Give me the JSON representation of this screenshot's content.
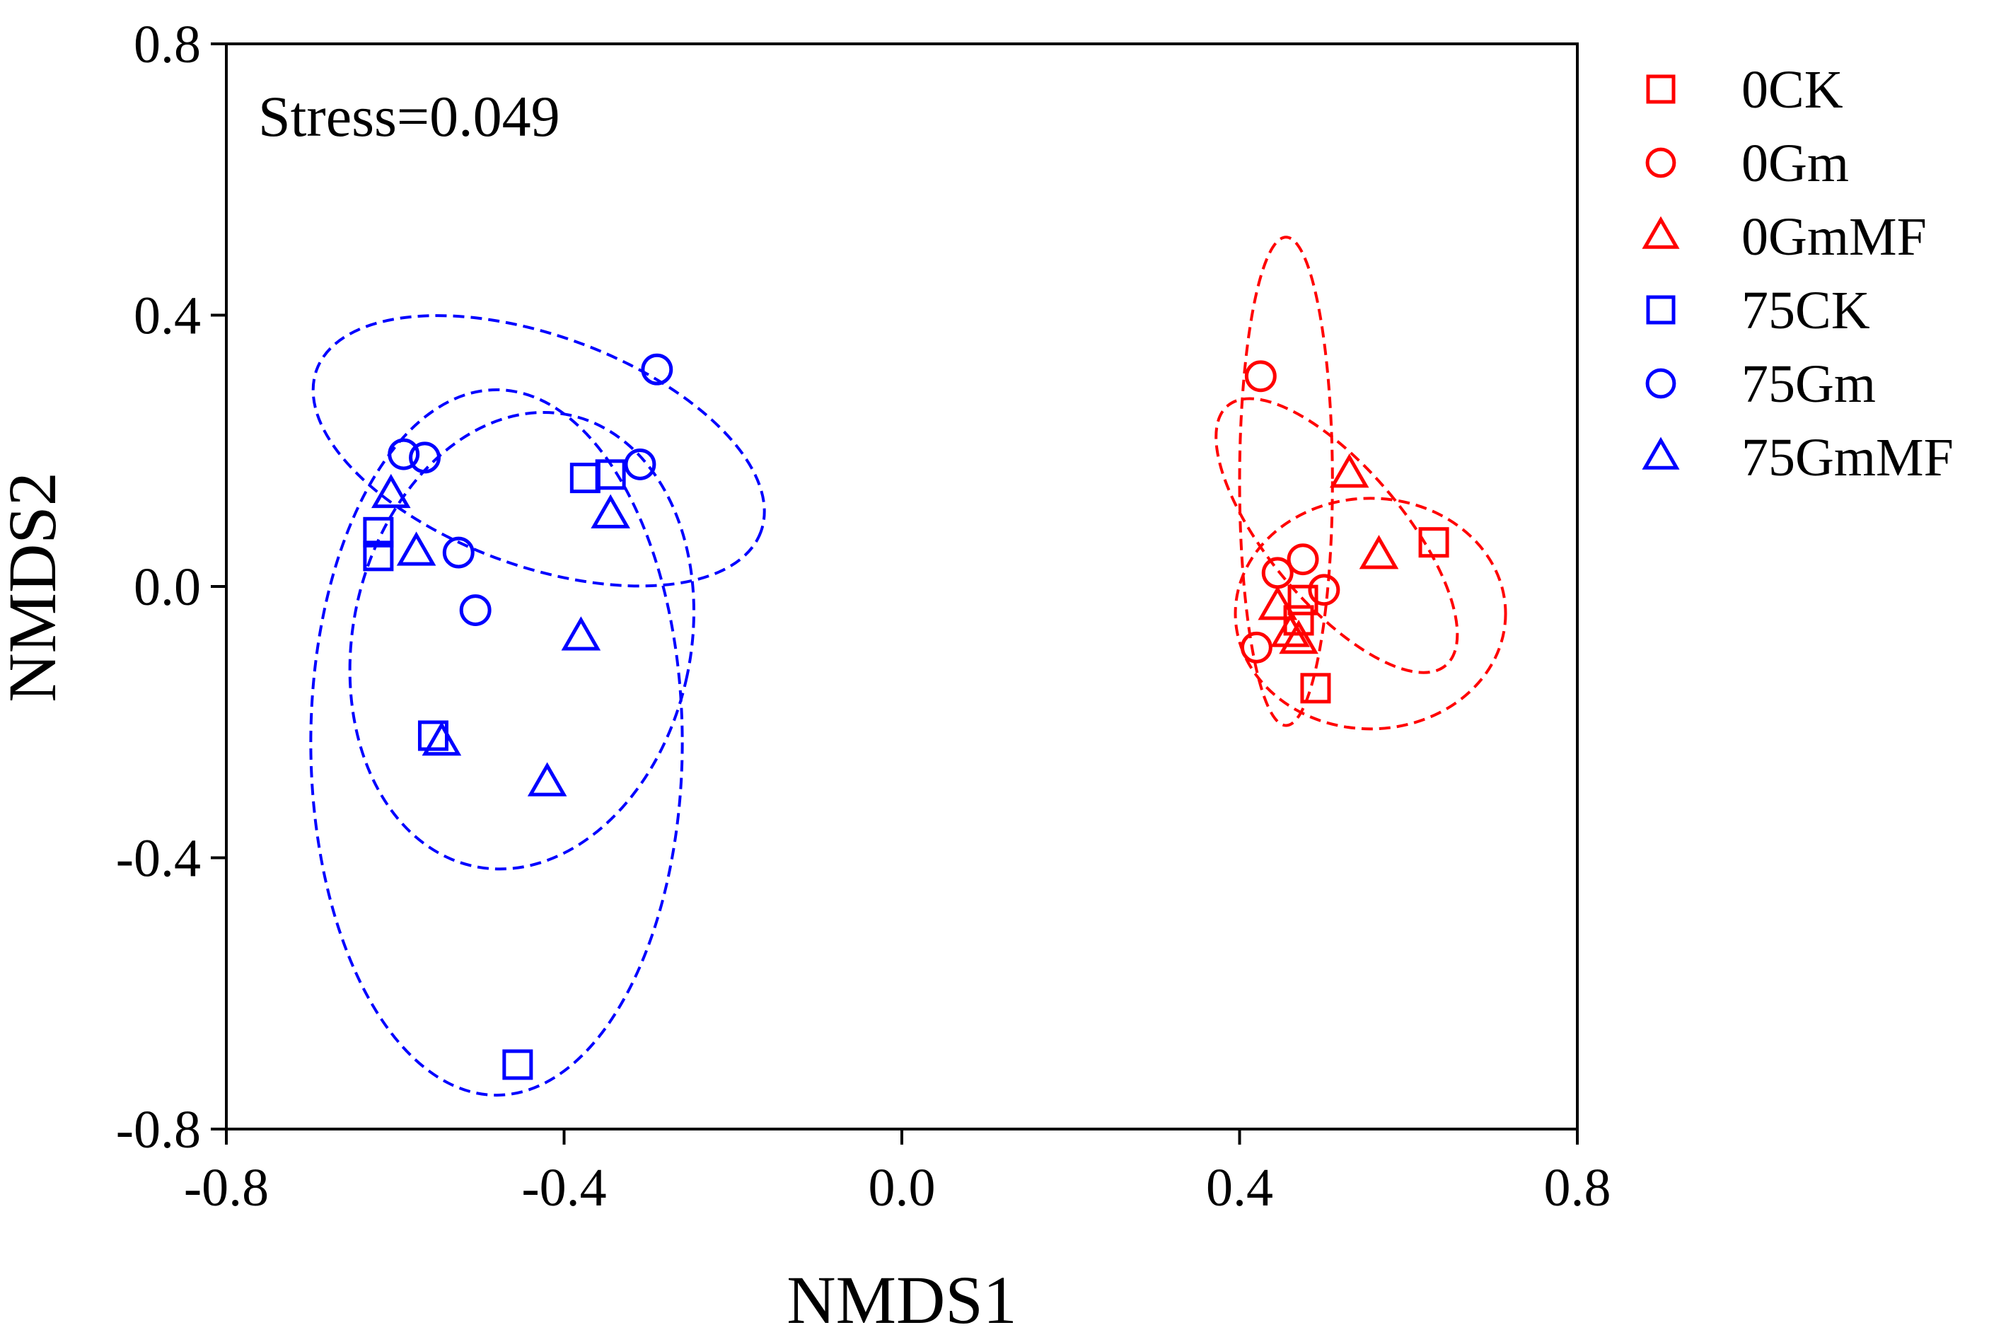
{
  "chart_data": {
    "type": "scatter",
    "title": "",
    "xlabel": "NMDS1",
    "ylabel": "NMDS2",
    "xlim": [
      -0.8,
      0.8
    ],
    "ylim": [
      -0.8,
      0.8
    ],
    "xticks": [
      "-0.8",
      "-0.4",
      "0.0",
      "0.4",
      "0.8"
    ],
    "yticks": [
      "-0.8",
      "-0.4",
      "0.0",
      "0.4",
      "0.8"
    ],
    "annotation": "Stress=0.049",
    "grid": false,
    "legend_position": "right",
    "colors": {
      "red": "#ff0000",
      "blue": "#0000ff"
    },
    "series": [
      {
        "name": "0CK",
        "marker": "square",
        "color": "#ff0000",
        "points": [
          [
            0.63,
            0.065
          ],
          [
            0.49,
            -0.15
          ],
          [
            0.47,
            -0.05
          ],
          [
            0.475,
            -0.02
          ]
        ]
      },
      {
        "name": "0Gm",
        "marker": "circle",
        "color": "#ff0000",
        "points": [
          [
            0.425,
            0.31
          ],
          [
            0.445,
            0.02
          ],
          [
            0.475,
            0.04
          ],
          [
            0.5,
            -0.005
          ],
          [
            0.42,
            -0.09
          ]
        ]
      },
      {
        "name": "0GmMF",
        "marker": "triangle",
        "color": "#ff0000",
        "points": [
          [
            0.53,
            0.165
          ],
          [
            0.565,
            0.045
          ],
          [
            0.445,
            -0.03
          ],
          [
            0.46,
            -0.07
          ],
          [
            0.47,
            -0.08
          ]
        ]
      },
      {
        "name": "75CK",
        "marker": "square",
        "color": "#0000ff",
        "points": [
          [
            -0.62,
            0.08
          ],
          [
            -0.62,
            0.045
          ],
          [
            -0.375,
            0.16
          ],
          [
            -0.345,
            0.165
          ],
          [
            -0.555,
            -0.22
          ],
          [
            -0.455,
            -0.705
          ]
        ]
      },
      {
        "name": "75Gm",
        "marker": "circle",
        "color": "#0000ff",
        "points": [
          [
            -0.59,
            0.195
          ],
          [
            -0.565,
            0.19
          ],
          [
            -0.525,
            0.05
          ],
          [
            -0.505,
            -0.035
          ],
          [
            -0.31,
            0.18
          ],
          [
            -0.29,
            0.32
          ]
        ]
      },
      {
        "name": "75GmMF",
        "marker": "triangle",
        "color": "#0000ff",
        "points": [
          [
            -0.605,
            0.135
          ],
          [
            -0.575,
            0.05
          ],
          [
            -0.345,
            0.105
          ],
          [
            -0.38,
            -0.075
          ],
          [
            -0.545,
            -0.23
          ],
          [
            -0.42,
            -0.29
          ]
        ]
      }
    ],
    "ellipses": [
      {
        "name": "0CK",
        "color": "#ff0000",
        "cx": 0.555,
        "cy": -0.04,
        "rx": 0.16,
        "ry": 0.17,
        "angle": 0
      },
      {
        "name": "0Gm",
        "color": "#ff0000",
        "cx": 0.455,
        "cy": 0.155,
        "rx": 0.055,
        "ry": 0.36,
        "angle": 0
      },
      {
        "name": "0GmMF",
        "color": "#ff0000",
        "cx": 0.515,
        "cy": 0.075,
        "rx": 0.08,
        "ry": 0.25,
        "angle": -40
      },
      {
        "name": "75CK",
        "color": "#0000ff",
        "cx": -0.48,
        "cy": -0.23,
        "rx": 0.22,
        "ry": 0.52,
        "angle": 0
      },
      {
        "name": "75Gm",
        "color": "#0000ff",
        "cx": -0.43,
        "cy": 0.2,
        "rx": 0.28,
        "ry": 0.17,
        "angle": 20
      },
      {
        "name": "75GmMF",
        "color": "#0000ff",
        "cx": -0.45,
        "cy": -0.08,
        "rx": 0.2,
        "ry": 0.34,
        "angle": 12
      }
    ]
  }
}
